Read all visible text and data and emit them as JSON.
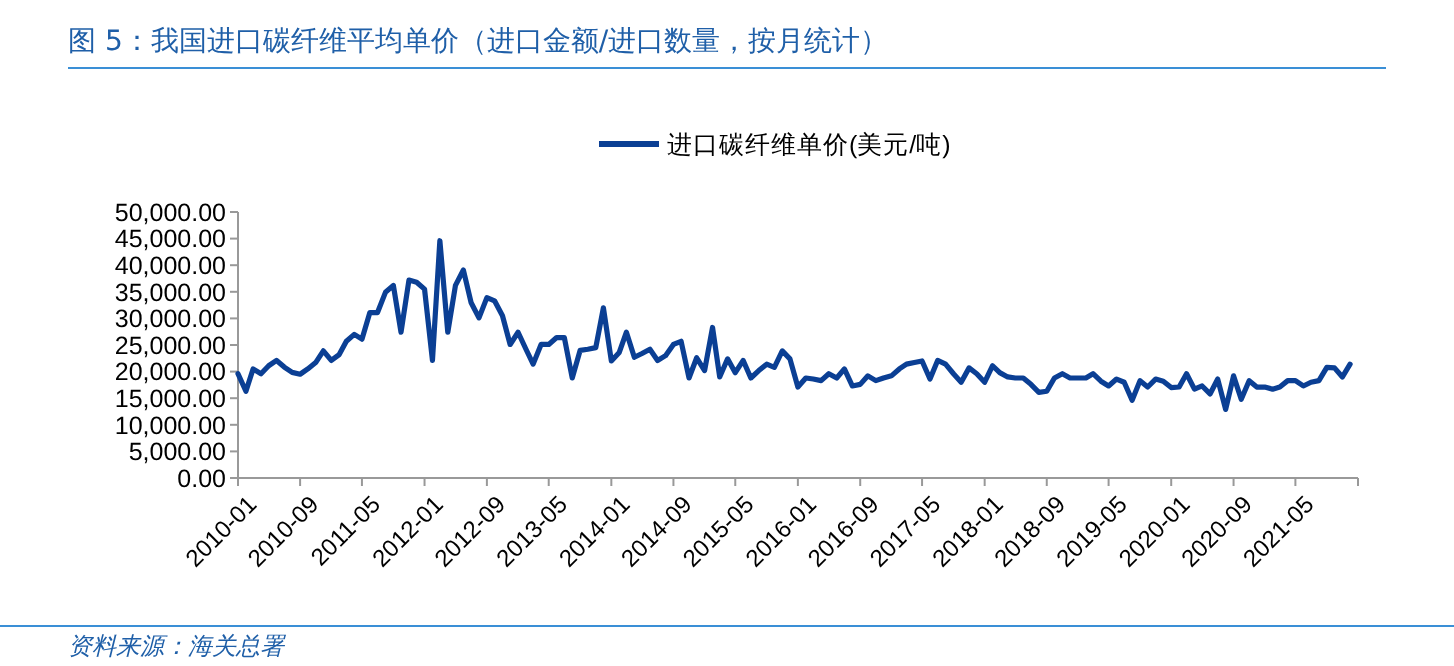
{
  "chart_data": {
    "type": "line",
    "title": "图 5：我国进口碳纤维平均单价（进口金额/进口数量，按月统计）",
    "annotations": [
      "资料来源：海关总署"
    ],
    "legend": "top",
    "marker": "none",
    "line_style": "solid",
    "xlim": [
      "2010-01",
      "2022-01"
    ],
    "xticks": [
      "2010-01",
      "2010-09",
      "2011-05",
      "2012-01",
      "2012-09",
      "2013-05",
      "2014-01",
      "2014-09",
      "2015-05",
      "2016-01",
      "2016-09",
      "2017-05",
      "2018-01",
      "2018-09",
      "2019-05",
      "2020-01",
      "2020-09",
      "2021-05",
      {
        "value": "2022-01",
        "label": null
      }
    ],
    "ylim": [
      0,
      50000
    ],
    "yticks": [
      {
        "value": 0,
        "label": "0.00"
      },
      {
        "value": 5000,
        "label": "5,000.00"
      },
      {
        "value": 10000,
        "label": "10,000.00"
      },
      {
        "value": 15000,
        "label": "15,000.00"
      },
      {
        "value": 20000,
        "label": "20,000.00"
      },
      {
        "value": 25000,
        "label": "25,000.00"
      },
      {
        "value": 30000,
        "label": "30,000.00"
      },
      {
        "value": 35000,
        "label": "35,000.00"
      },
      {
        "value": 40000,
        "label": "40,000.00"
      },
      {
        "value": 45000,
        "label": "45,000.00"
      },
      {
        "value": 50000,
        "label": "50,000.00"
      }
    ],
    "x": [
      "2010-01",
      "2010-02",
      "2010-03",
      "2010-04",
      "2010-05",
      "2010-06",
      "2010-07",
      "2010-08",
      "2010-09",
      "2010-10",
      "2010-11",
      "2010-12",
      "2011-01",
      "2011-02",
      "2011-03",
      "2011-04",
      "2011-05",
      "2011-06",
      "2011-07",
      "2011-08",
      "2011-09",
      "2011-10",
      "2011-11",
      "2011-12",
      "2012-01",
      "2012-02",
      "2012-03",
      "2012-04",
      "2012-05",
      "2012-06",
      "2012-07",
      "2012-08",
      "2012-09",
      "2012-10",
      "2012-11",
      "2012-12",
      "2013-01",
      "2013-02",
      "2013-03",
      "2013-04",
      "2013-05",
      "2013-06",
      "2013-07",
      "2013-08",
      "2013-09",
      "2013-10",
      "2013-11",
      "2013-12",
      "2014-01",
      "2014-02",
      "2014-03",
      "2014-04",
      "2014-05",
      "2014-06",
      "2014-07",
      "2014-08",
      "2014-09",
      "2014-10",
      "2014-11",
      "2014-12",
      "2015-01",
      "2015-02",
      "2015-03",
      "2015-04",
      "2015-05",
      "2015-06",
      "2015-07",
      "2015-08",
      "2015-09",
      "2015-10",
      "2015-11",
      "2015-12",
      "2016-01",
      "2016-02",
      "2016-03",
      "2016-04",
      "2016-05",
      "2016-06",
      "2016-07",
      "2016-08",
      "2016-09",
      "2016-10",
      "2016-11",
      "2016-12",
      "2017-01",
      "2017-02",
      "2017-03",
      "2017-04",
      "2017-05",
      "2017-06",
      "2017-07",
      "2017-08",
      "2017-09",
      "2017-10",
      "2017-11",
      "2017-12",
      "2018-01",
      "2018-02",
      "2018-03",
      "2018-04",
      "2018-05",
      "2018-06",
      "2018-07",
      "2018-08",
      "2018-09",
      "2018-10",
      "2018-11",
      "2018-12",
      "2019-01",
      "2019-02",
      "2019-03",
      "2019-04",
      "2019-05",
      "2019-06",
      "2019-07",
      "2019-08",
      "2019-09",
      "2019-10",
      "2019-11",
      "2019-12",
      "2020-01",
      "2020-02",
      "2020-03",
      "2020-04",
      "2020-05",
      "2020-06",
      "2020-07",
      "2020-08",
      "2020-09",
      "2020-10",
      "2020-11",
      "2020-12",
      "2021-01",
      "2021-02",
      "2021-03",
      "2021-04",
      "2021-05",
      "2021-06",
      "2021-07",
      "2021-08",
      "2021-09",
      "2021-10",
      "2021-11",
      "2021-12"
    ],
    "series": [
      {
        "name": "进口碳纤维单价(美元/吨)",
        "color": "#0b3f94",
        "values": [
          19600,
          16300,
          20500,
          19600,
          21100,
          22100,
          20850,
          19850,
          19500,
          20500,
          21700,
          23900,
          22100,
          23200,
          25700,
          27000,
          26100,
          31100,
          31100,
          34900,
          36200,
          27400,
          37200,
          36800,
          35500,
          22100,
          44600,
          27400,
          36200,
          39100,
          33000,
          30100,
          33900,
          33300,
          30500,
          25100,
          27400,
          24200,
          21400,
          25100,
          25100,
          26400,
          26400,
          18800,
          24000,
          24200,
          24500,
          32000,
          22000,
          23600,
          27400,
          22700,
          23400,
          24200,
          22100,
          23000,
          25100,
          25700,
          18800,
          22600,
          20200,
          28300,
          19000,
          22400,
          19800,
          22100,
          18800,
          20200,
          21400,
          20800,
          23900,
          22400,
          17100,
          18800,
          18600,
          18300,
          19600,
          18800,
          20500,
          17300,
          17600,
          19200,
          18300,
          18800,
          19200,
          20500,
          21400,
          21700,
          22000,
          18600,
          22100,
          21400,
          19600,
          18000,
          20700,
          19600,
          18000,
          21100,
          19800,
          19000,
          18800,
          18800,
          17600,
          16100,
          16300,
          18800,
          19600,
          18800,
          18800,
          18800,
          19600,
          18200,
          17300,
          18600,
          18000,
          14600,
          18300,
          17100,
          18600,
          18200,
          17000,
          17100,
          19600,
          16700,
          17300,
          15800,
          18600,
          12900,
          19200,
          14800,
          18300,
          17100,
          17100,
          16700,
          17100,
          18300,
          18300,
          17300,
          18000,
          18300,
          20800,
          20700,
          19000,
          21400
        ]
      }
    ]
  }
}
